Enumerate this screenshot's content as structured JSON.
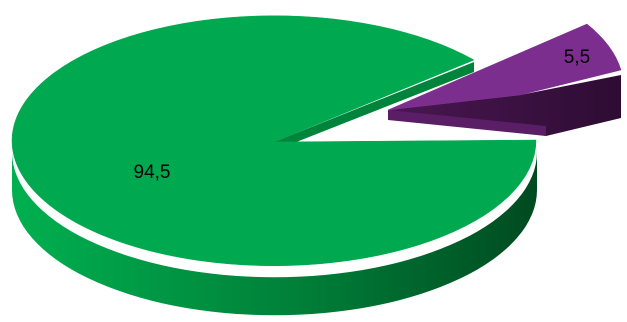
{
  "chart_data": {
    "type": "pie",
    "title": "",
    "slices": [
      {
        "label": "94,5",
        "value": 94.5,
        "color": "#00A84F"
      },
      {
        "label": "5,5",
        "value": 5.5,
        "color": "#7B2E8E",
        "exploded": true
      }
    ],
    "style": "3d",
    "legend": "none"
  }
}
